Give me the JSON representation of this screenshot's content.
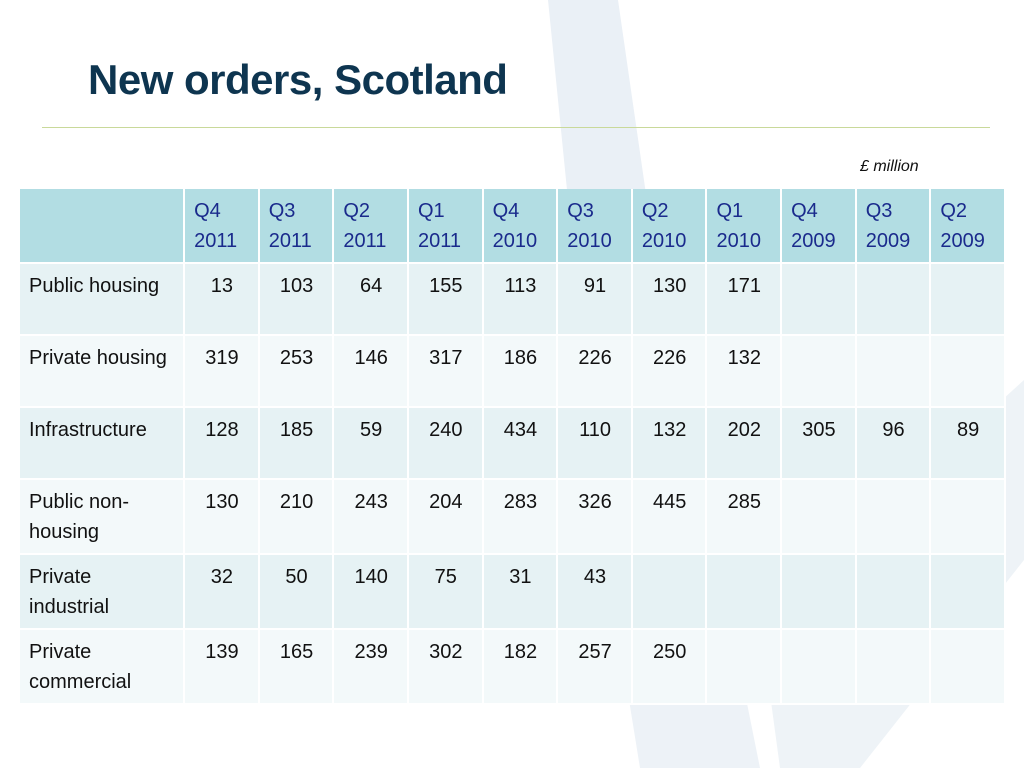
{
  "slide": {
    "title": "New orders, Scotland",
    "unit_note": "£ million"
  },
  "table": {
    "headers": [
      {
        "q": "Q4",
        "y": "2011"
      },
      {
        "q": "Q3",
        "y": "2011"
      },
      {
        "q": "Q2",
        "y": "2011"
      },
      {
        "q": "Q1",
        "y": "2011"
      },
      {
        "q": "Q4",
        "y": "2010"
      },
      {
        "q": "Q3",
        "y": "2010"
      },
      {
        "q": "Q2",
        "y": "2010"
      },
      {
        "q": "Q1",
        "y": "2010"
      },
      {
        "q": "Q4",
        "y": "2009"
      },
      {
        "q": "Q3",
        "y": "2009"
      },
      {
        "q": "Q2",
        "y": "2009"
      }
    ],
    "rows": [
      {
        "label": "Public housing",
        "values": [
          "13",
          "103",
          "64",
          "155",
          "113",
          "91",
          "130",
          "171",
          "",
          "",
          ""
        ]
      },
      {
        "label": "Private housing",
        "values": [
          "319",
          "253",
          "146",
          "317",
          "186",
          "226",
          "226",
          "132",
          "",
          "",
          ""
        ]
      },
      {
        "label": "Infrastructure",
        "values": [
          "128",
          "185",
          "59",
          "240",
          "434",
          "110",
          "132",
          "202",
          "305",
          "96",
          "89"
        ]
      },
      {
        "label": "Public non-housing",
        "values": [
          "130",
          "210",
          "243",
          "204",
          "283",
          "326",
          "445",
          "285",
          "",
          "",
          ""
        ]
      },
      {
        "label": "Private industrial",
        "values": [
          "32",
          "50",
          "140",
          "75",
          "31",
          "43",
          "",
          "",
          "",
          "",
          ""
        ]
      },
      {
        "label": "Private commercial",
        "values": [
          "139",
          "165",
          "239",
          "302",
          "182",
          "257",
          "250",
          "",
          "",
          "",
          ""
        ]
      }
    ]
  },
  "colors": {
    "title": "#0e3550",
    "header_bg": "#b2dde3",
    "header_text": "#1a2a8c",
    "row_odd_bg": "#e6f2f4",
    "row_even_bg": "#f3f9fa",
    "rule": "#c9d99a"
  }
}
